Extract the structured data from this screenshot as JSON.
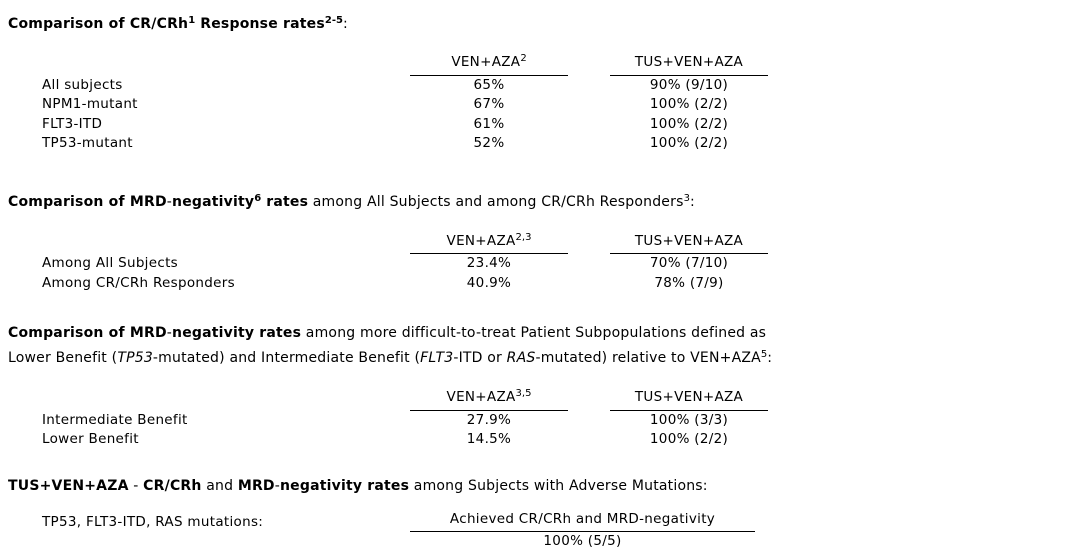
{
  "document": {
    "sections": [
      {
        "title_runs": [
          {
            "t": "Comparison of CR/CRh"
          },
          {
            "t": "1"
          },
          {
            "t": " Response rates"
          },
          {
            "t": "2-5"
          },
          {
            "t": ":"
          }
        ],
        "columns": [
          {
            "name": "VEN+AZA",
            "sup": "2"
          },
          {
            "name": "TUS+VEN+AZA",
            "sup": ""
          }
        ],
        "rows": [
          {
            "label": "All subjects",
            "ven_aza": "65%",
            "tus_ven_aza": "90% (9/10)"
          },
          {
            "label": "NPM1-mutant",
            "ven_aza": "67%",
            "tus_ven_aza": "100% (2/2)"
          },
          {
            "label": "FLT3-ITD",
            "ven_aza": "61%",
            "tus_ven_aza": "100% (2/2)"
          },
          {
            "label": "TP53-mutant",
            "ven_aza": "52%",
            "tus_ven_aza": "100% (2/2)"
          }
        ]
      },
      {
        "title_runs": [
          {
            "t": "Comparison of MRD"
          },
          {
            "t": "-"
          },
          {
            "t": "negativity"
          },
          {
            "t": "6"
          },
          {
            "t": " rates"
          },
          {
            "t": " among All Subjects and among CR/CRh Responders"
          },
          {
            "t": "3"
          },
          {
            "t": ":"
          }
        ],
        "columns": [
          {
            "name": "VEN+AZA",
            "sup": "2,3"
          },
          {
            "name": "TUS+VEN+AZA",
            "sup": ""
          }
        ],
        "rows": [
          {
            "label": "Among All Subjects",
            "ven_aza": "23.4%",
            "tus_ven_aza": "70% (7/10)"
          },
          {
            "label": "Among CR/CRh Responders",
            "ven_aza": "40.9%",
            "tus_ven_aza": "78% (7/9)"
          }
        ]
      },
      {
        "title_line1_runs": [
          {
            "t": "Comparison of MRD"
          },
          {
            "t": "-"
          },
          {
            "t": "negativity rates"
          },
          {
            "t": " among more difficult-to-treat Patient Subpopulations defined as"
          }
        ],
        "title_line2_runs": [
          {
            "t": "Lower Benefit ("
          },
          {
            "t": "TP53"
          },
          {
            "t": "-mutated) and Intermediate Benefit ("
          },
          {
            "t": "FLT3"
          },
          {
            "t": "-ITD or "
          },
          {
            "t": "RAS"
          },
          {
            "t": "-mutated) relative to VEN+AZA"
          },
          {
            "t": "5"
          },
          {
            "t": ":"
          }
        ],
        "columns": [
          {
            "name": "VEN+AZA",
            "sup": "3,5"
          },
          {
            "name": "TUS+VEN+AZA",
            "sup": ""
          }
        ],
        "rows": [
          {
            "label": "Intermediate Benefit",
            "ven_aza": "27.9%",
            "tus_ven_aza": "100% (3/3)"
          },
          {
            "label": "Lower Benefit",
            "ven_aza": "14.5%",
            "tus_ven_aza": "100% (2/2)"
          }
        ]
      },
      {
        "title_runs": [
          {
            "t": "TUS+VEN+AZA"
          },
          {
            "t": " - "
          },
          {
            "t": "CR/CRh"
          },
          {
            "t": " and "
          },
          {
            "t": "MRD"
          },
          {
            "t": "-"
          },
          {
            "t": "negativity rates"
          },
          {
            "t": " among Subjects with Adverse Mutations:"
          }
        ],
        "row_label": "TP53, FLT3-ITD, RAS mutations:",
        "column_header": "Achieved CR/CRh and MRD-negativity",
        "value": "100% (5/5)"
      }
    ]
  }
}
